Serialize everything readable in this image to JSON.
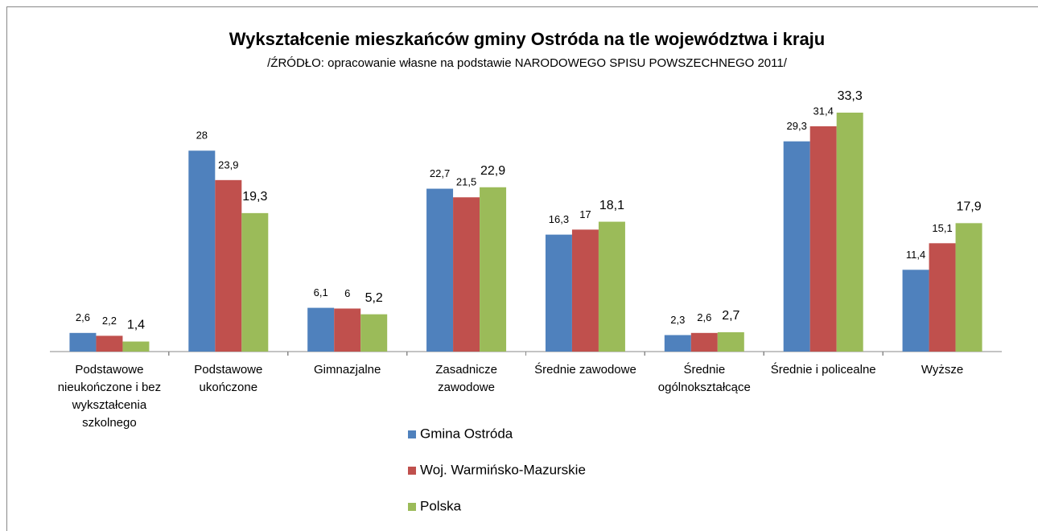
{
  "chart_data": {
    "type": "bar",
    "title": "Wykształcenie mieszkańców gminy Ostróda na tle województwa i kraju",
    "subtitle": "/ŹRÓDŁO: opracowanie własne na podstawie NARODOWEGO SPISU POWSZECHNEGO 2011/",
    "categories": [
      "Podstawowe nieukończone i bez wykształcenia szkolnego",
      "Podstawowe ukończone",
      "Gimnazjalne",
      "Zasadnicze zawodowe",
      "Średnie zawodowe",
      "Średnie ogólnokształcące",
      "Średnie i policealne",
      "Wyższe"
    ],
    "series": [
      {
        "name": "Gmina Ostróda",
        "color": "#4f81bd",
        "values": [
          2.6,
          28,
          6.1,
          22.7,
          16.3,
          2.3,
          29.3,
          11.4
        ],
        "value_labels": [
          "2,6",
          "28",
          "6,1",
          "22,7",
          "16,3",
          "2,3",
          "29,3",
          "11,4"
        ]
      },
      {
        "name": "Woj. Warmińsko-Mazurskie",
        "color": "#c0504d",
        "values": [
          2.2,
          23.9,
          6,
          21.5,
          17,
          2.6,
          31.4,
          15.1
        ],
        "value_labels": [
          "2,2",
          "23,9",
          "6",
          "21,5",
          "17",
          "2,6",
          "31,4",
          "15,1"
        ]
      },
      {
        "name": "Polska",
        "color": "#9bbb59",
        "values": [
          1.4,
          19.3,
          5.2,
          22.9,
          18.1,
          2.7,
          33.3,
          17.9
        ],
        "value_labels": [
          "1,4",
          "19,3",
          "5,2",
          "22,9",
          "18,1",
          "2,7",
          "33,3",
          "17,9"
        ]
      }
    ]
  }
}
